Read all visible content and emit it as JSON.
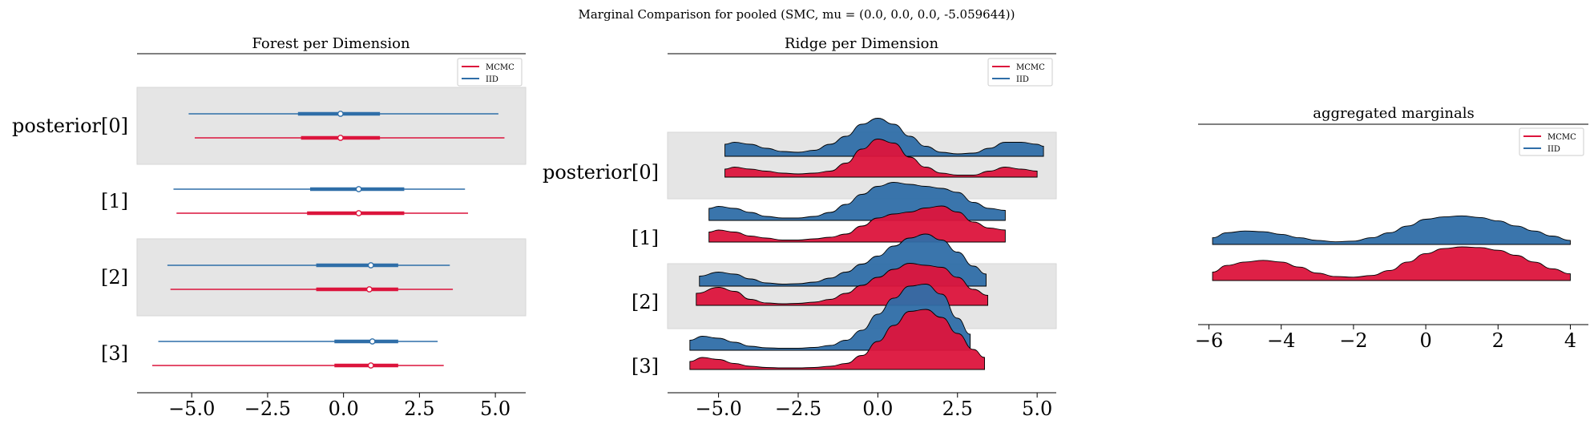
{
  "suptitle": "Marginal Comparison for pooled (SMC, mu = (0.0, 0.0, 0.0, -5.059644))",
  "colors": {
    "MCMC": "#dc143c",
    "IID": "#2f6ea8",
    "band": "#e5e5e5"
  },
  "legend": [
    "MCMC",
    "IID"
  ],
  "chart_data": [
    {
      "type": "forest",
      "title": "Forest per Dimension",
      "rows": [
        "posterior[0]",
        "[1]",
        "[2]",
        "[3]"
      ],
      "xlim": [
        -6.8,
        6.0
      ],
      "xticks": [
        "−5.0",
        "−2.5",
        "0.0",
        "2.5",
        "5.0"
      ],
      "xtick_values": [
        -5.0,
        -2.5,
        0.0,
        2.5,
        5.0
      ],
      "series": [
        {
          "name": "MCMC",
          "intervals": [
            {
              "low": -4.9,
              "q25": -1.4,
              "mean": -0.1,
              "q75": 1.2,
              "high": 5.3
            },
            {
              "low": -5.5,
              "q25": -1.2,
              "mean": 0.5,
              "q75": 2.0,
              "high": 4.1
            },
            {
              "low": -5.7,
              "q25": -0.9,
              "mean": 0.85,
              "q75": 1.8,
              "high": 3.6
            },
            {
              "low": -6.3,
              "q25": -0.3,
              "mean": 0.9,
              "q75": 1.8,
              "high": 3.3
            }
          ]
        },
        {
          "name": "IID",
          "intervals": [
            {
              "low": -5.1,
              "q25": -1.5,
              "mean": -0.1,
              "q75": 1.2,
              "high": 5.1
            },
            {
              "low": -5.6,
              "q25": -1.1,
              "mean": 0.5,
              "q75": 2.0,
              "high": 4.0
            },
            {
              "low": -5.8,
              "q25": -0.9,
              "mean": 0.9,
              "q75": 1.8,
              "high": 3.5
            },
            {
              "low": -6.1,
              "q25": -0.3,
              "mean": 0.95,
              "q75": 1.8,
              "high": 3.1
            }
          ]
        }
      ]
    },
    {
      "type": "ridge",
      "title": "Ridge per Dimension",
      "rows": [
        "posterior[0]",
        "[1]",
        "[2]",
        "[3]"
      ],
      "xlim": [
        -6.6,
        5.6
      ],
      "xticks": [
        "−5.0",
        "−2.5",
        "0.0",
        "2.5",
        "5.0"
      ],
      "xtick_values": [
        -5.0,
        -2.5,
        0.0,
        2.5,
        5.0
      ],
      "series": [
        {
          "name": "MCMC",
          "densities": [
            {
              "x": [
                -4.8,
                -4.5,
                -4.0,
                -3.5,
                -3.0,
                -2.5,
                -2.0,
                -1.5,
                -1.0,
                -0.5,
                0.0,
                0.5,
                1.0,
                1.5,
                2.0,
                2.5,
                3.0,
                3.5,
                4.0,
                4.5,
                5.0
              ],
              "y": [
                0.2,
                0.25,
                0.2,
                0.15,
                0.1,
                0.08,
                0.1,
                0.15,
                0.35,
                0.7,
                0.95,
                0.85,
                0.5,
                0.25,
                0.1,
                0.05,
                0.05,
                0.15,
                0.25,
                0.2,
                0.15
              ]
            },
            {
              "x": [
                -5.3,
                -5.0,
                -4.5,
                -4.0,
                -3.5,
                -3.0,
                -2.5,
                -2.0,
                -1.5,
                -1.0,
                -0.5,
                0.0,
                0.5,
                1.0,
                1.5,
                2.0,
                2.5,
                3.0,
                3.5,
                4.0
              ],
              "y": [
                0.25,
                0.3,
                0.25,
                0.15,
                0.1,
                0.05,
                0.05,
                0.08,
                0.12,
                0.2,
                0.4,
                0.6,
                0.7,
                0.75,
                0.85,
                0.9,
                0.75,
                0.5,
                0.35,
                0.3
              ]
            },
            {
              "x": [
                -5.7,
                -5.0,
                -4.5,
                -4.0,
                -3.5,
                -3.0,
                -2.5,
                -2.0,
                -1.5,
                -1.0,
                -0.5,
                0.0,
                0.5,
                1.0,
                1.5,
                2.0,
                2.5,
                3.0,
                3.45
              ],
              "y": [
                0.3,
                0.45,
                0.35,
                0.15,
                0.06,
                0.04,
                0.05,
                0.08,
                0.15,
                0.3,
                0.5,
                0.7,
                0.9,
                1.05,
                1.0,
                0.95,
                0.7,
                0.4,
                0.25
              ]
            },
            {
              "x": [
                -5.9,
                -5.5,
                -5.0,
                -4.5,
                -4.0,
                -3.5,
                -3.0,
                -2.5,
                -2.0,
                -1.5,
                -1.0,
                -0.5,
                0.0,
                0.5,
                1.0,
                1.5,
                2.0,
                2.5,
                3.0,
                3.35
              ],
              "y": [
                0.2,
                0.3,
                0.25,
                0.15,
                0.08,
                0.05,
                0.04,
                0.04,
                0.05,
                0.08,
                0.15,
                0.35,
                0.7,
                1.1,
                1.45,
                1.5,
                1.3,
                0.9,
                0.5,
                0.3
              ]
            }
          ]
        },
        {
          "name": "IID",
          "densities": [
            {
              "x": [
                -4.8,
                -4.5,
                -4.0,
                -3.5,
                -3.0,
                -2.5,
                -2.0,
                -1.5,
                -1.0,
                -0.5,
                0.0,
                0.5,
                1.0,
                1.5,
                2.0,
                2.5,
                3.0,
                3.5,
                4.0,
                4.5,
                5.0,
                5.2
              ],
              "y": [
                0.3,
                0.35,
                0.3,
                0.2,
                0.12,
                0.1,
                0.15,
                0.3,
                0.5,
                0.8,
                0.95,
                0.8,
                0.5,
                0.25,
                0.1,
                0.06,
                0.08,
                0.2,
                0.35,
                0.35,
                0.3,
                0.25
              ]
            },
            {
              "x": [
                -5.3,
                -5.0,
                -4.5,
                -4.0,
                -3.5,
                -3.0,
                -2.5,
                -2.0,
                -1.5,
                -1.0,
                -0.5,
                0.0,
                0.5,
                1.0,
                1.5,
                2.0,
                2.5,
                3.0,
                3.5,
                4.0
              ],
              "y": [
                0.3,
                0.35,
                0.3,
                0.2,
                0.1,
                0.06,
                0.06,
                0.1,
                0.2,
                0.4,
                0.65,
                0.85,
                0.95,
                0.9,
                0.85,
                0.8,
                0.7,
                0.45,
                0.3,
                0.25
              ]
            },
            {
              "x": [
                -5.6,
                -5.0,
                -4.5,
                -4.0,
                -3.5,
                -3.0,
                -2.5,
                -2.0,
                -1.5,
                -1.0,
                -0.5,
                0.0,
                0.5,
                1.0,
                1.5,
                2.0,
                2.5,
                3.0,
                3.4
              ],
              "y": [
                0.25,
                0.35,
                0.3,
                0.18,
                0.08,
                0.05,
                0.06,
                0.1,
                0.2,
                0.35,
                0.55,
                0.75,
                1.0,
                1.2,
                1.3,
                1.15,
                0.85,
                0.5,
                0.3
              ]
            },
            {
              "x": [
                -5.9,
                -5.5,
                -5.0,
                -4.5,
                -4.0,
                -3.5,
                -3.0,
                -2.5,
                -2.0,
                -1.5,
                -1.0,
                -0.5,
                0.0,
                0.5,
                1.0,
                1.5,
                2.0,
                2.5,
                2.9
              ],
              "y": [
                0.25,
                0.35,
                0.3,
                0.2,
                0.1,
                0.06,
                0.05,
                0.05,
                0.07,
                0.12,
                0.25,
                0.5,
                0.9,
                1.3,
                1.6,
                1.65,
                1.4,
                0.8,
                0.4
              ]
            }
          ]
        }
      ]
    },
    {
      "type": "density",
      "title": "aggregated marginals",
      "xlim": [
        -6.3,
        4.5
      ],
      "xticks": [
        "−6",
        "−4",
        "−2",
        "0",
        "2",
        "4"
      ],
      "xtick_values": [
        -6,
        -4,
        -2,
        0,
        2,
        4
      ],
      "series": [
        {
          "name": "MCMC",
          "x": [
            -5.9,
            -5.5,
            -5.0,
            -4.5,
            -4.0,
            -3.5,
            -3.0,
            -2.5,
            -2.0,
            -1.5,
            -1.0,
            -0.5,
            0.0,
            0.5,
            1.0,
            1.5,
            2.0,
            2.5,
            3.0,
            3.5,
            4.0
          ],
          "y": [
            0.25,
            0.45,
            0.55,
            0.6,
            0.55,
            0.4,
            0.22,
            0.12,
            0.1,
            0.15,
            0.3,
            0.55,
            0.8,
            0.95,
            1.0,
            0.98,
            0.9,
            0.75,
            0.55,
            0.35,
            0.2
          ]
        },
        {
          "name": "IID",
          "x": [
            -5.9,
            -5.5,
            -5.0,
            -4.5,
            -4.0,
            -3.5,
            -3.0,
            -2.5,
            -2.0,
            -1.5,
            -1.0,
            -0.5,
            0.0,
            0.5,
            1.0,
            1.5,
            2.0,
            2.5,
            3.0,
            3.5,
            4.0
          ],
          "y": [
            0.2,
            0.35,
            0.4,
            0.38,
            0.3,
            0.2,
            0.12,
            0.08,
            0.1,
            0.2,
            0.35,
            0.55,
            0.75,
            0.82,
            0.85,
            0.8,
            0.7,
            0.55,
            0.4,
            0.25,
            0.12
          ]
        }
      ]
    }
  ]
}
